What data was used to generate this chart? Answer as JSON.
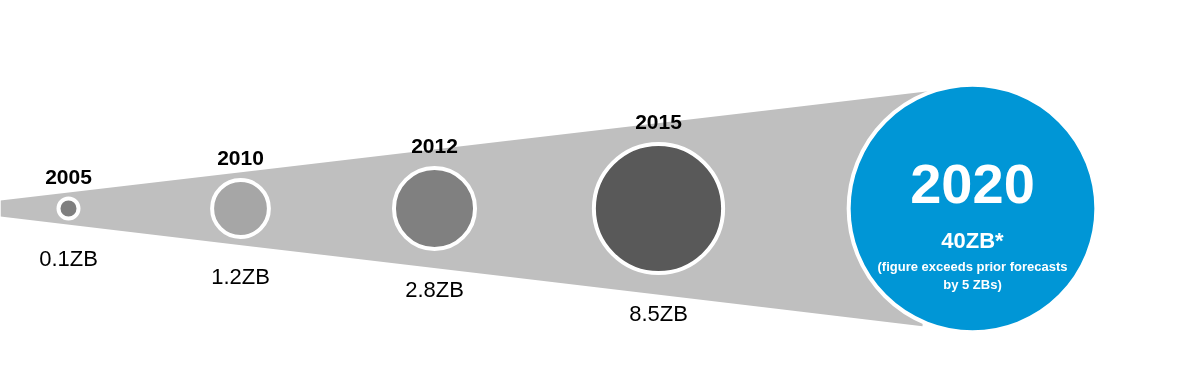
{
  "chart_data": {
    "type": "other",
    "categories": [
      "2005",
      "2010",
      "2012",
      "2015",
      "2020"
    ],
    "values": [
      0.1,
      1.2,
      2.8,
      8.5,
      40
    ],
    "value_labels": [
      "0.1ZB",
      "1.2ZB",
      "2.8ZB",
      "8.5ZB",
      "40ZB*"
    ],
    "colors": [
      "#7f7f7f",
      "#a6a6a6",
      "#808080",
      "#595959",
      "#0096d6"
    ],
    "annotations": [
      "(figure exceeds prior forecasts by 5 ZBs)"
    ]
  }
}
